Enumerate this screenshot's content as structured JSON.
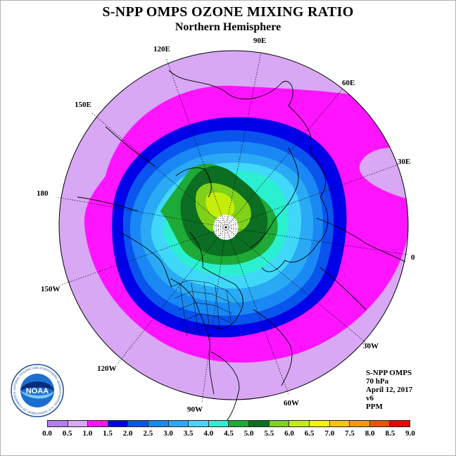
{
  "header": {
    "title": "S-NPP OMPS OZONE MIXING RATIO",
    "subtitle": "Northern Hemisphere"
  },
  "map": {
    "projection": "north-polar-stereographic",
    "meridian_labels": [
      "90E",
      "60E",
      "30E",
      "0",
      "30W",
      "60W",
      "90W",
      "120W",
      "150W",
      "180",
      "150E",
      "120E"
    ]
  },
  "info": {
    "instrument": "S-NPP OMPS",
    "pressure": "70 hPa",
    "date": "April 12, 2017",
    "version": "v6",
    "units": "PPM"
  },
  "colorbar": {
    "ticks": [
      "0.0",
      "0.5",
      "1.0",
      "1.5",
      "2.0",
      "2.5",
      "3.0",
      "3.5",
      "4.0",
      "4.5",
      "5.0",
      "5.5",
      "6.0",
      "6.5",
      "7.0",
      "7.5",
      "8.0",
      "8.5",
      "9.0"
    ],
    "colors": [
      "#b27fe8",
      "#d8a8f4",
      "#ff14ff",
      "#0000e8",
      "#0a54ee",
      "#1a88f4",
      "#2aaaf4",
      "#40d8f8",
      "#2af0d0",
      "#1eaa36",
      "#0c6e22",
      "#80d218",
      "#c4ee0a",
      "#f6f600",
      "#f4c800",
      "#f29a00",
      "#f25000",
      "#ee0000",
      "#8b5a38"
    ]
  },
  "logo": {
    "text": "NOAA",
    "ring_text": "NATIONAL OCEANIC AND ATMOSPHERIC ADMINISTRATION · U.S. DEPARTMENT OF COMMERCE"
  }
}
